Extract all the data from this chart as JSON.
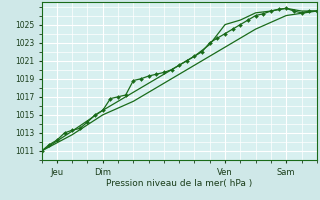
{
  "bg_color": "#cfe8e8",
  "plot_bg_color": "#d8f0f0",
  "grid_color": "#b8d8d8",
  "grid_major_color": "#ffffff",
  "line_color": "#1a6b1a",
  "axis_label_color": "#1a3d1a",
  "tick_label_color": "#1a3d1a",
  "xlabel": "Pression niveau de la mer( hPa )",
  "yticks": [
    1011,
    1013,
    1015,
    1017,
    1019,
    1021,
    1023,
    1025
  ],
  "ymin": 1010.0,
  "ymax": 1027.5,
  "xmin": 0,
  "xmax": 108,
  "day_labels": [
    "Jeu",
    "Dim",
    "Ven",
    "Sam"
  ],
  "day_positions": [
    6,
    24,
    72,
    96
  ],
  "line1_x": [
    0,
    3,
    6,
    9,
    12,
    15,
    18,
    21,
    24,
    27,
    30,
    33,
    36,
    39,
    42,
    45,
    48,
    51,
    54,
    57,
    60,
    63,
    66,
    69,
    72,
    75,
    78,
    81,
    84,
    87,
    90,
    93,
    96,
    99,
    102,
    105,
    108
  ],
  "line1_y": [
    1011.0,
    1011.7,
    1012.2,
    1013.0,
    1013.3,
    1013.5,
    1014.2,
    1015.0,
    1015.5,
    1016.8,
    1017.0,
    1017.2,
    1018.8,
    1019.0,
    1019.3,
    1019.5,
    1019.7,
    1020.0,
    1020.5,
    1021.0,
    1021.5,
    1022.0,
    1023.0,
    1023.5,
    1024.0,
    1024.5,
    1025.0,
    1025.5,
    1026.0,
    1026.2,
    1026.5,
    1026.7,
    1026.8,
    1026.5,
    1026.3,
    1026.5,
    1026.5
  ],
  "line2_x": [
    0,
    12,
    24,
    36,
    48,
    60,
    72,
    84,
    96,
    108
  ],
  "line2_y": [
    1011.0,
    1012.8,
    1015.0,
    1016.5,
    1018.5,
    1020.5,
    1022.5,
    1024.5,
    1026.0,
    1026.5
  ],
  "line3_x": [
    0,
    12,
    24,
    30,
    36,
    42,
    48,
    54,
    60,
    66,
    72,
    78,
    84,
    90,
    96,
    102,
    108
  ],
  "line3_y": [
    1011.0,
    1013.2,
    1015.5,
    1016.5,
    1017.5,
    1018.5,
    1019.5,
    1020.5,
    1021.5,
    1022.8,
    1025.0,
    1025.5,
    1026.3,
    1026.5,
    1026.8,
    1026.5,
    1026.5
  ]
}
